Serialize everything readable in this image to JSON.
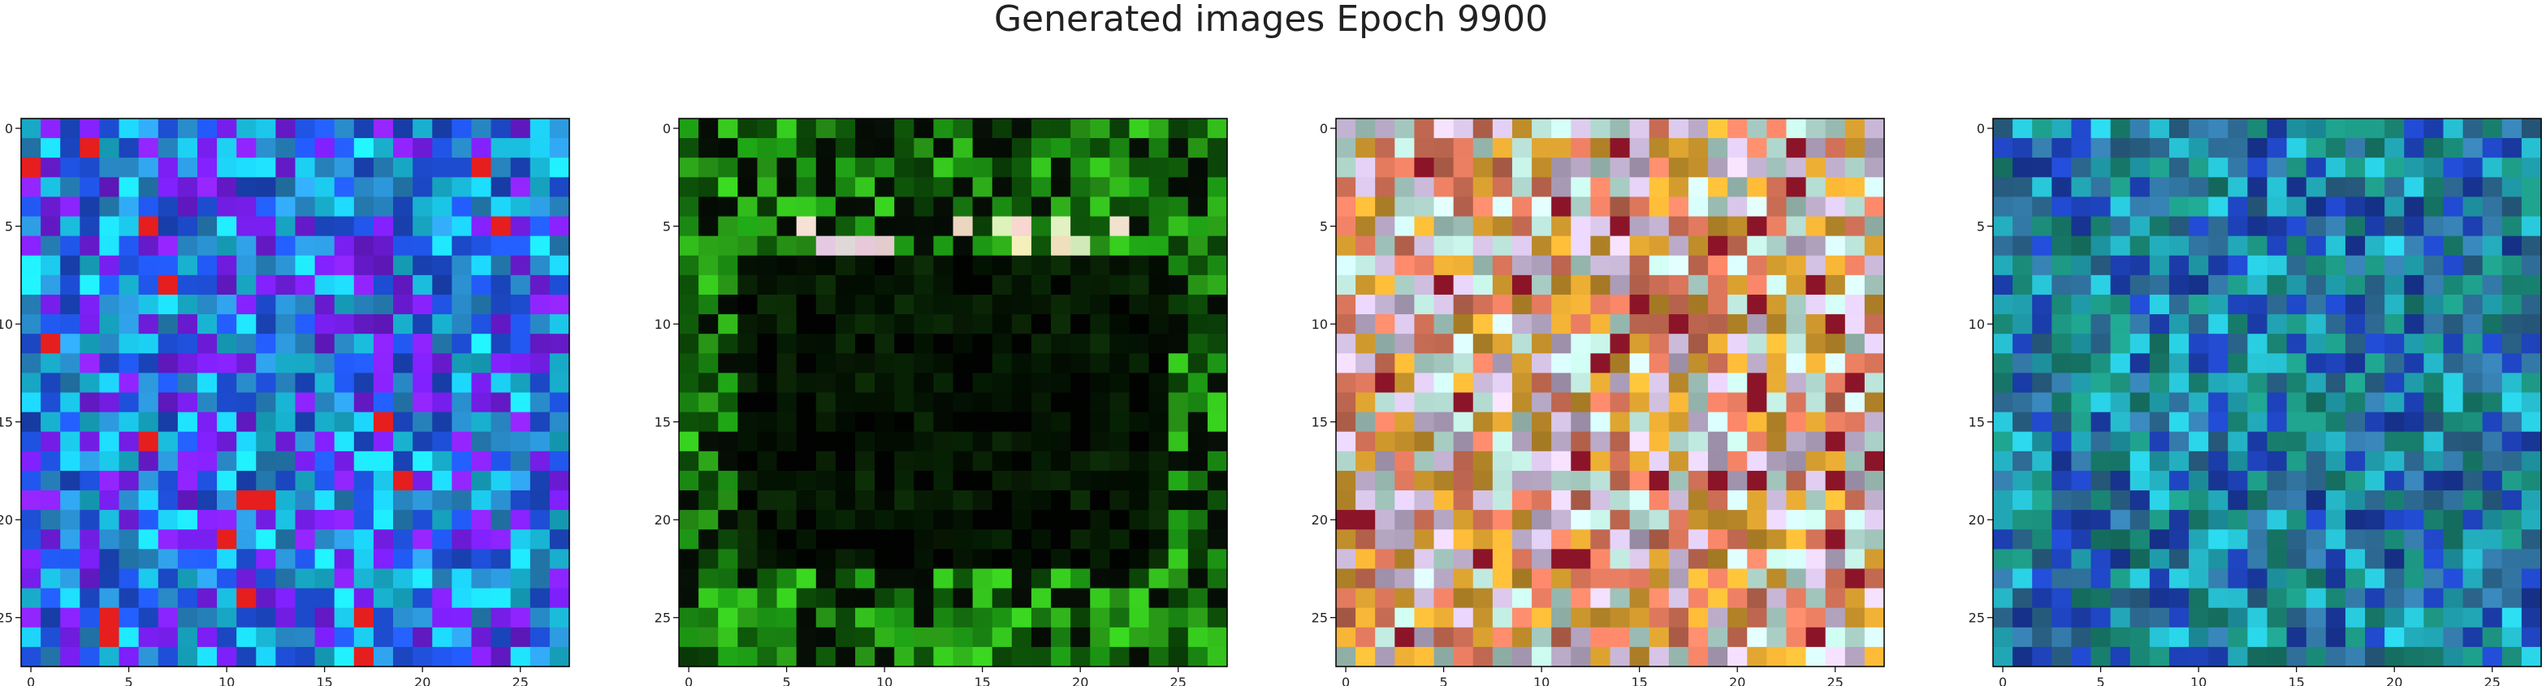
{
  "title": "Generated images Epoch 9900",
  "chart_data": [
    {
      "type": "heatmap",
      "description_palette": "blue-purple-cyan",
      "grid": false,
      "x_range": [
        -0.5,
        27.5
      ],
      "y_range": [
        27.5,
        -0.5
      ],
      "x_ticks": [
        0,
        5,
        10,
        15,
        20,
        25
      ],
      "y_ticks": [
        0,
        5,
        10,
        15,
        20,
        25
      ],
      "dominant_colors": [
        "#1e4fd8",
        "#7a1ff2",
        "#1bc6e8",
        "#2a8fcf"
      ]
    },
    {
      "type": "heatmap",
      "grid": false,
      "x_range": [
        -0.5,
        27.5
      ],
      "y_range": [
        27.5,
        -0.5
      ],
      "x_ticks": [
        0,
        5,
        10,
        15,
        20,
        25
      ],
      "y_ticks": [
        0,
        5,
        10,
        15,
        20,
        25
      ],
      "dominant_colors": [
        "#1a8a12",
        "#0c4a08",
        "#050d05",
        "#2fb01a"
      ]
    },
    {
      "type": "heatmap",
      "grid": false,
      "x_range": [
        -0.5,
        27.5
      ],
      "y_range": [
        27.5,
        -0.5
      ],
      "x_ticks": [
        0,
        5,
        10,
        15,
        20,
        25
      ],
      "y_ticks": [
        0,
        5,
        10,
        15,
        20,
        25
      ],
      "dominant_colors": [
        "#d9a030",
        "#c9b8d8",
        "#b8e0d6",
        "#d7745a"
      ]
    },
    {
      "type": "heatmap",
      "grid": false,
      "x_range": [
        -0.5,
        27.5
      ],
      "y_range": [
        27.5,
        -0.5
      ],
      "x_ticks": [
        0,
        5,
        10,
        15,
        20,
        25
      ],
      "y_ticks": [
        0,
        5,
        10,
        15,
        20,
        25
      ],
      "dominant_colors": [
        "#1a8a78",
        "#1c3fb0",
        "#24b3c4",
        "#2f6f9a"
      ]
    }
  ]
}
